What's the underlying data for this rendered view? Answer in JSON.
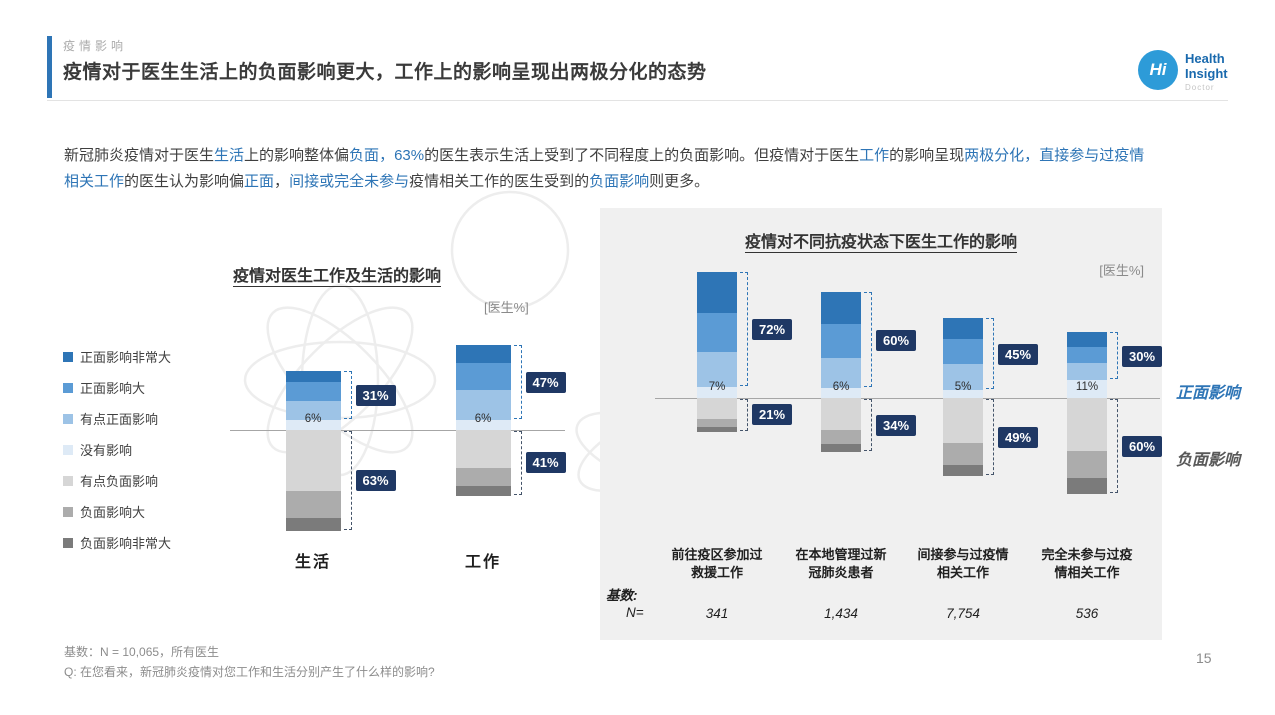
{
  "header": {
    "section": "疫情影响",
    "title": "疫情对于医生生活上的负面影响更大，工作上的影响呈现出两极分化的态势"
  },
  "logo": {
    "monogram": "Hi",
    "line1": "Health",
    "line2": "Insight",
    "line3": "Doctor"
  },
  "intro": {
    "runs": [
      {
        "t": "新冠肺炎疫情对于医生",
        "c": "dark"
      },
      {
        "t": "生活",
        "c": "blue"
      },
      {
        "t": "上的影响整体偏",
        "c": "dark"
      },
      {
        "t": "负面",
        "c": "blue"
      },
      {
        "t": "，",
        "c": "blue"
      },
      {
        "t": "63%",
        "c": "blue"
      },
      {
        "t": "的医生表示生活上受到了不同程度上的负面影响。但疫情对于医生",
        "c": "dark"
      },
      {
        "t": "工作",
        "c": "blue"
      },
      {
        "t": "的影响呈现",
        "c": "dark"
      },
      {
        "t": "两极分化",
        "c": "blue"
      },
      {
        "t": "，",
        "c": "blue"
      },
      {
        "t": "直接参与过疫情相关工作",
        "c": "blue"
      },
      {
        "t": "的医生认为影响偏",
        "c": "dark"
      },
      {
        "t": "正面",
        "c": "blue"
      },
      {
        "t": "，",
        "c": "dark"
      },
      {
        "t": "间接或完全未参与",
        "c": "blue"
      },
      {
        "t": "疫情相关工作的医生受到的",
        "c": "dark"
      },
      {
        "t": "负面影响",
        "c": "blue"
      },
      {
        "t": "则更多。",
        "c": "dark"
      }
    ]
  },
  "colors": {
    "positive_segments": [
      "#2E75B6",
      "#5B9BD5",
      "#9DC3E6"
    ],
    "neutral_segment": "#DEEAF6",
    "negative_segments": [
      "#D6D6D6",
      "#ACACAC",
      "#7B7B7B"
    ],
    "callout_bg": "#1F3864",
    "callout_text": "#FFFFFF",
    "bracket_positive": "#2E75B6",
    "bracket_negative": "#44546A",
    "accent_blue": "#2E75B6",
    "positive_label_color": "#2E75B6",
    "negative_label_color": "#595959"
  },
  "chart_data": [
    {
      "type": "bar",
      "subtype": "diverging-stacked-percent",
      "title": "疫情对医生工作及生活的影响",
      "unit_label": "[医生%]",
      "legend": [
        "正面影响非常大",
        "正面影响大",
        "有点正面影响",
        "没有影响",
        "有点负面影响",
        "负面影响大",
        "负面影响非常大"
      ],
      "note": "sub-segment values estimated from bar proportions; labeled values are the callout totals",
      "categories": [
        "生活",
        "工作"
      ],
      "bars": [
        {
          "category": "生活",
          "positive_total": 31,
          "neutral": 6,
          "negative_total": 63,
          "positive_segments": [
            7,
            12,
            12
          ],
          "negative_segments": [
            38,
            17,
            8
          ]
        },
        {
          "category": "工作",
          "positive_total": 47,
          "neutral": 6,
          "negative_total": 41,
          "positive_segments": [
            11,
            17,
            19
          ],
          "negative_segments": [
            24,
            11,
            6
          ]
        }
      ]
    },
    {
      "type": "bar",
      "subtype": "diverging-stacked-percent",
      "title": "疫情对不同抗疫状态下医生工作的影响",
      "unit_label": "[医生%]",
      "axis_labels": {
        "positive": "正面影响",
        "negative": "负面影响"
      },
      "base_label": "基数:",
      "n_label": "N=",
      "note": "sub-segment values estimated from bar proportions; labeled values are the callout totals",
      "categories": [
        "前往疫区参加过救援工作",
        "在本地管理过新冠肺炎患者",
        "间接参与过疫情相关工作",
        "完全未参与过疫情相关工作"
      ],
      "bars": [
        {
          "category": "前往疫区参加过救援工作",
          "category_lines": [
            "前往疫区参加过",
            "救援工作"
          ],
          "n": "341",
          "positive_total": 72,
          "neutral": 7,
          "negative_total": 21,
          "positive_segments": [
            26,
            24,
            22
          ],
          "negative_segments": [
            13,
            5,
            3
          ]
        },
        {
          "category": "在本地管理过新冠肺炎患者",
          "category_lines": [
            "在本地管理过新",
            "冠肺炎患者"
          ],
          "n": "1,434",
          "positive_total": 60,
          "neutral": 6,
          "negative_total": 34,
          "positive_segments": [
            20,
            21,
            19
          ],
          "negative_segments": [
            20,
            9,
            5
          ]
        },
        {
          "category": "间接参与过疫情相关工作",
          "category_lines": [
            "间接参与过疫情",
            "相关工作"
          ],
          "n": "7,754",
          "positive_total": 45,
          "neutral": 5,
          "negative_total": 49,
          "positive_segments": [
            13,
            16,
            16
          ],
          "negative_segments": [
            28,
            14,
            7
          ]
        },
        {
          "category": "完全未参与过疫情相关工作",
          "category_lines": [
            "完全未参与过疫",
            "情相关工作"
          ],
          "n": "536",
          "positive_total": 30,
          "neutral": 11,
          "negative_total": 60,
          "positive_segments": [
            9,
            10,
            11
          ],
          "negative_segments": [
            33,
            17,
            10
          ]
        }
      ]
    }
  ],
  "footer": {
    "base": "基数：N = 10,065，所有医生",
    "question": "Q: 在您看来，新冠肺炎疫情对您工作和生活分别产生了什么样的影响?",
    "page": "15"
  }
}
